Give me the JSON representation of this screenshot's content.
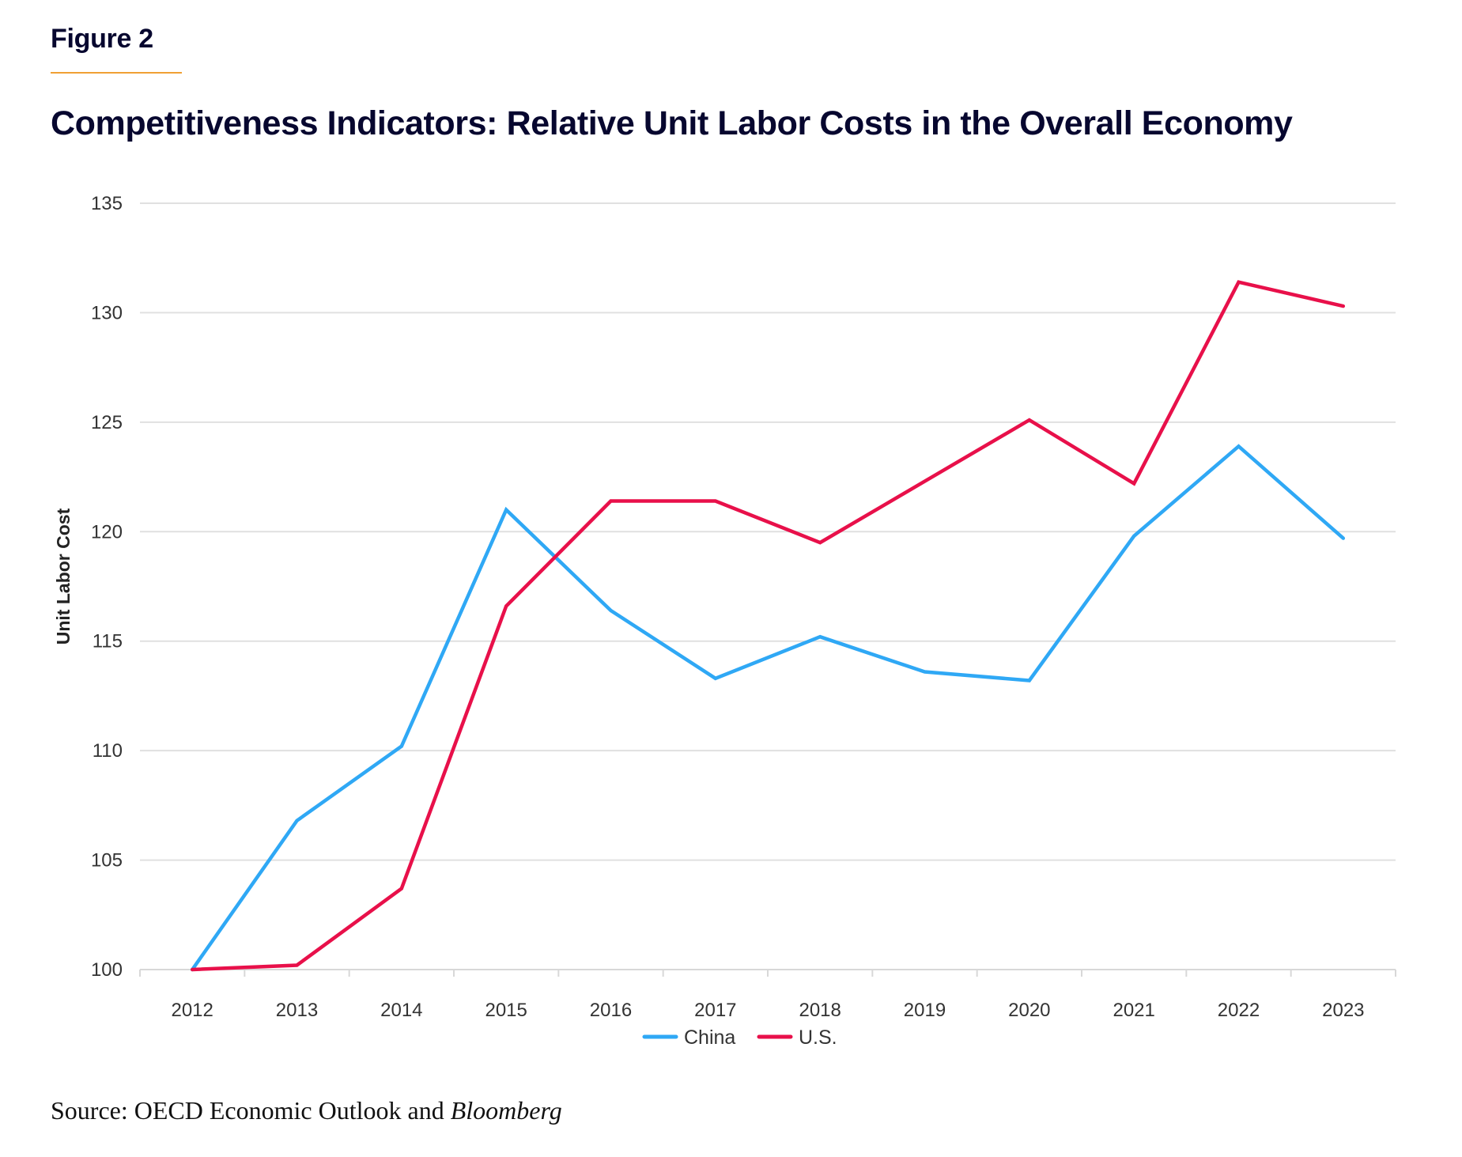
{
  "figure_label": "Figure 2",
  "title": "Competitiveness Indicators: Relative Unit Labor Costs in the Overall Economy",
  "source": {
    "prefix": "Source: OECD Economic Outlook and ",
    "italic": "Bloomberg"
  },
  "colors": {
    "title": "#07072f",
    "accent_rule": "#f0a033",
    "china": "#2fa8f5",
    "us": "#e8104a",
    "grid": "#e0e0e0",
    "tick_text": "#333333"
  },
  "chart_data": {
    "type": "line",
    "title": "Competitiveness Indicators: Relative Unit Labor Costs in the Overall Economy",
    "xlabel": "",
    "ylabel": "Unit Labor Cost",
    "categories": [
      "2012",
      "2013",
      "2014",
      "2015",
      "2016",
      "2017",
      "2018",
      "2019",
      "2020",
      "2021",
      "2022",
      "2023"
    ],
    "ylim": [
      100,
      135
    ],
    "yticks": [
      100,
      105,
      110,
      115,
      120,
      125,
      130,
      135
    ],
    "grid": true,
    "legend_position": "bottom-center",
    "series": [
      {
        "name": "China",
        "color": "#2fa8f5",
        "values": [
          100.0,
          106.8,
          110.2,
          121.0,
          116.4,
          113.3,
          115.2,
          113.6,
          113.2,
          119.8,
          123.9,
          119.7
        ]
      },
      {
        "name": "U.S.",
        "color": "#e8104a",
        "values": [
          100.0,
          100.2,
          103.7,
          116.6,
          121.4,
          121.4,
          119.5,
          122.3,
          125.1,
          122.2,
          131.4,
          130.3
        ]
      }
    ]
  }
}
